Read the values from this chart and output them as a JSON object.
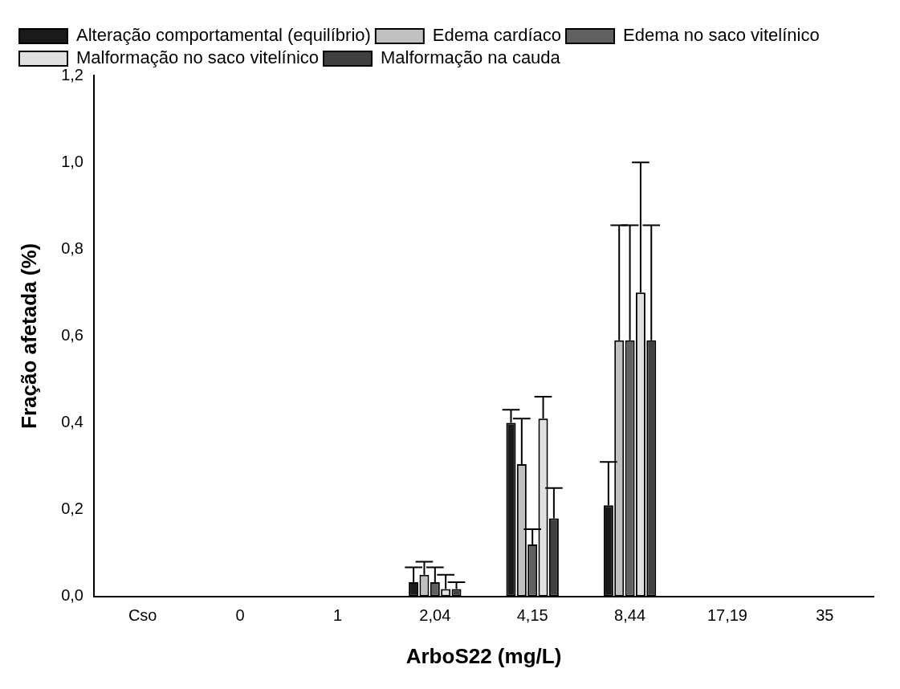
{
  "chart_data": {
    "type": "bar",
    "xlabel": "ArboS22 (mg/L)",
    "ylabel": "Fração afetada (%)",
    "categories": [
      "Cso",
      "0",
      "1",
      "2,04",
      "4,15",
      "8,44",
      "17,19",
      "35"
    ],
    "ylim": [
      0,
      1.2
    ],
    "yticks": [
      {
        "value": 0,
        "label": "0,0"
      },
      {
        "value": 0.2,
        "label": "0,2"
      },
      {
        "value": 0.4,
        "label": "0,4"
      },
      {
        "value": 0.6,
        "label": "0,6"
      },
      {
        "value": 0.8,
        "label": "0,8"
      },
      {
        "value": 1,
        "label": "1,0"
      },
      {
        "value": 1.2,
        "label": "1,2"
      }
    ],
    "grid": false,
    "legend": "top left",
    "series": [
      {
        "name": "Alteração comportamental (equilíbrio)",
        "color": "#1a1a1a",
        "values": [
          0,
          0,
          0,
          0.033,
          0.4,
          0.21,
          0,
          0
        ],
        "errors": [
          null,
          null,
          null,
          [
            0.033,
            0.067
          ],
          [
            0.4,
            0.43
          ],
          [
            0.21,
            0.31
          ],
          null,
          null
        ]
      },
      {
        "name": "Edema cardíaco",
        "color": "#c0c0c0",
        "values": [
          0,
          0,
          0,
          0.05,
          0.305,
          0.59,
          0,
          0
        ],
        "errors": [
          null,
          null,
          null,
          [
            0.05,
            0.08
          ],
          [
            0.305,
            0.41
          ],
          [
            0.59,
            0.855
          ],
          null,
          null
        ]
      },
      {
        "name": "Edema no saco vitelínico",
        "color": "#606060",
        "values": [
          0,
          0,
          0,
          0.033,
          0.12,
          0.59,
          0,
          0
        ],
        "errors": [
          null,
          null,
          null,
          [
            0.033,
            0.067
          ],
          [
            0.12,
            0.155
          ],
          [
            0.59,
            0.855
          ],
          null,
          null
        ]
      },
      {
        "name": "Malformação no saco vitelínico",
        "color": "#e0e0e0",
        "values": [
          0,
          0,
          0,
          0.017,
          0.41,
          0.7,
          0,
          0
        ],
        "errors": [
          null,
          null,
          null,
          [
            0.017,
            0.05
          ],
          [
            0.41,
            0.46
          ],
          [
            0.7,
            1.0
          ],
          null,
          null
        ]
      },
      {
        "name": "Malformação na cauda",
        "color": "#404040",
        "values": [
          0,
          0,
          0,
          0.017,
          0.18,
          0.59,
          0,
          0
        ],
        "errors": [
          null,
          null,
          null,
          [
            0.017,
            0.033
          ],
          [
            0.18,
            0.25
          ],
          [
            0.59,
            0.855
          ],
          null,
          null
        ]
      }
    ]
  }
}
